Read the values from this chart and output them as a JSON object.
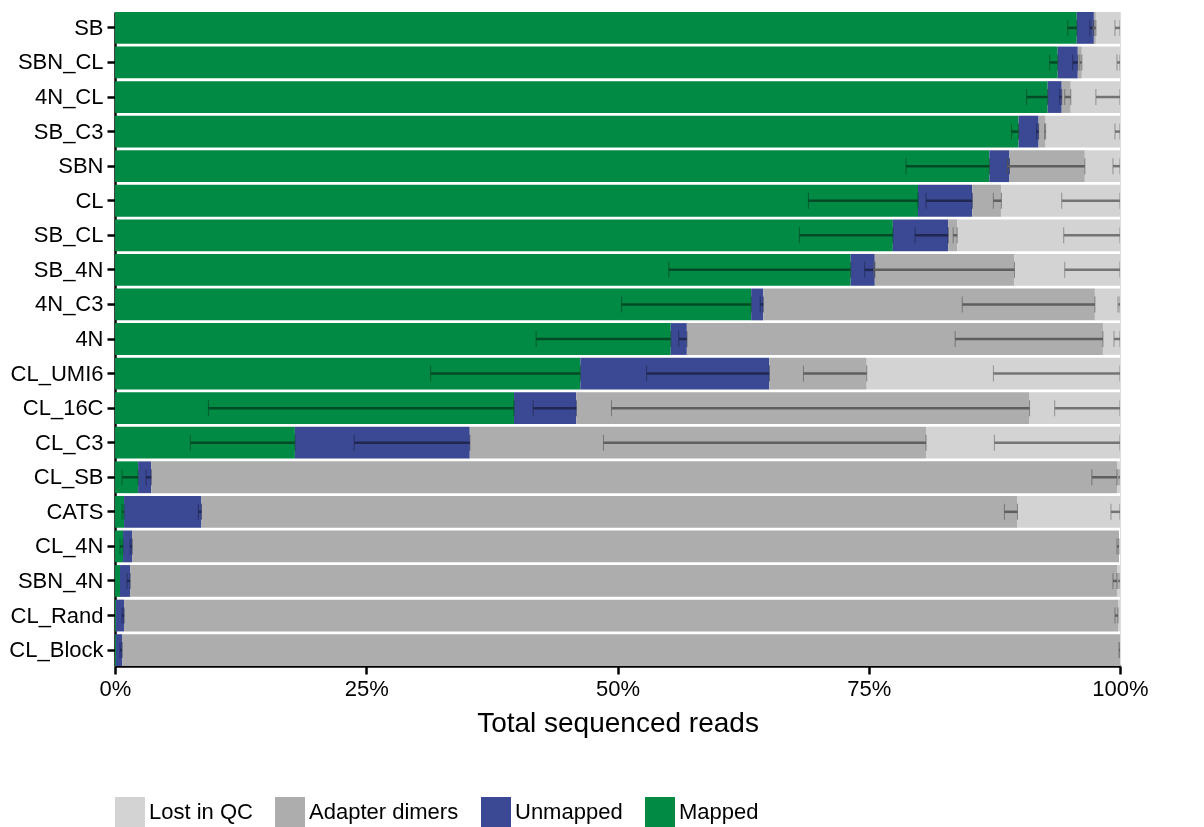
{
  "chart_data": {
    "type": "bar",
    "orientation": "horizontal",
    "stacked": true,
    "categories": [
      "SB",
      "SBN_CL",
      "4N_CL",
      "SB_C3",
      "SBN",
      "CL",
      "SB_CL",
      "SB_4N",
      "4N_C3",
      "4N",
      "CL_UMI6",
      "CL_16C",
      "CL_C3",
      "CL_SB",
      "CATS",
      "CL_4N",
      "SBN_4N",
      "CL_Rand",
      "CL_Block"
    ],
    "xlabel": "Total sequenced reads",
    "xlim": [
      0,
      100
    ],
    "xticks": [
      {
        "value": 0,
        "label": "0%"
      },
      {
        "value": 25,
        "label": "25%"
      },
      {
        "value": 50,
        "label": "50%"
      },
      {
        "value": 75,
        "label": "75%"
      },
      {
        "value": 100,
        "label": "100%"
      }
    ],
    "grid": false,
    "legend": "bottom",
    "series": [
      {
        "name": "Mapped",
        "color": "#008a44",
        "values": [
          95.7,
          93.8,
          92.8,
          89.9,
          87.0,
          79.9,
          77.4,
          73.2,
          63.3,
          55.3,
          46.3,
          39.7,
          17.9,
          2.3,
          0.9,
          0.8,
          0.5,
          0.1,
          0.1
        ],
        "errors": [
          [
            94.8,
            95.7
          ],
          [
            93.0,
            93.8
          ],
          [
            90.7,
            92.8
          ],
          [
            89.2,
            89.9
          ],
          [
            78.7,
            87.0
          ],
          [
            69.0,
            79.9
          ],
          [
            68.1,
            77.4
          ],
          [
            55.1,
            73.2
          ],
          [
            50.4,
            63.3
          ],
          [
            41.9,
            55.3
          ],
          [
            31.4,
            46.3
          ],
          [
            9.3,
            39.7
          ],
          [
            7.5,
            17.9
          ],
          [
            0.7,
            2.3
          ],
          [
            0.7,
            0.9
          ],
          [
            0.5,
            0.8
          ],
          null,
          null,
          null
        ]
      },
      {
        "name": "Unmapped",
        "color": "#3b4994",
        "values": [
          1.7,
          2.0,
          1.4,
          2.0,
          2.0,
          5.4,
          5.5,
          2.4,
          1.2,
          1.6,
          18.8,
          6.2,
          17.4,
          1.3,
          7.7,
          0.9,
          1.0,
          0.8,
          0.6
        ],
        "errors": [
          [
            97.0,
            97.4
          ],
          [
            95.3,
            95.8
          ],
          [
            94.0,
            94.2
          ],
          [
            91.7,
            91.9
          ],
          [
            88.8,
            89.0
          ],
          [
            80.7,
            85.3
          ],
          [
            79.6,
            82.9
          ],
          [
            74.6,
            75.6
          ],
          [
            64.2,
            64.5
          ],
          [
            56.1,
            56.9
          ],
          [
            52.9,
            65.1
          ],
          [
            41.6,
            45.9
          ],
          [
            23.8,
            35.3
          ],
          [
            3.1,
            3.6
          ],
          [
            8.3,
            8.6
          ],
          [
            1.5,
            1.7
          ],
          [
            1.2,
            1.5
          ],
          [
            0.7,
            0.9
          ],
          [
            0.5,
            0.7
          ]
        ]
      },
      {
        "name": "Adapter dimers",
        "color": "#adadad",
        "values": [
          0.2,
          0.4,
          0.9,
          0.7,
          7.5,
          2.9,
          0.9,
          13.9,
          33.0,
          41.4,
          9.7,
          45.1,
          45.4,
          96.1,
          81.2,
          98.2,
          98.2,
          98.9,
          99.3
        ],
        "errors": [
          [
            97.3,
            97.6
          ],
          [
            96.0,
            96.2
          ],
          [
            94.5,
            95.1
          ],
          [
            92.5,
            92.6
          ],
          [
            88.8,
            96.5
          ],
          [
            87.4,
            88.2
          ],
          [
            83.4,
            83.8
          ],
          [
            75.5,
            89.5
          ],
          [
            84.3,
            97.5
          ],
          [
            83.6,
            98.3
          ],
          [
            68.5,
            74.8
          ],
          [
            49.4,
            91.0
          ],
          [
            48.6,
            80.7
          ],
          [
            97.2,
            99.7
          ],
          [
            88.5,
            89.8
          ],
          [
            99.7,
            99.9
          ],
          [
            99.3,
            99.7
          ],
          [
            99.5,
            99.8
          ],
          [
            99.9,
            100
          ]
        ]
      },
      {
        "name": "Lost in QC",
        "color": "#d3d3d3",
        "values": [
          2.4,
          3.8,
          4.9,
          7.4,
          3.5,
          11.8,
          16.2,
          10.5,
          2.5,
          1.7,
          25.2,
          9.0,
          19.3,
          0.3,
          10.2,
          null,
          0.3,
          0.2,
          null
        ],
        "errors": [
          [
            99.5,
            100
          ],
          [
            99.7,
            100
          ],
          [
            97.6,
            100
          ],
          [
            99.5,
            100
          ],
          [
            99.3,
            100
          ],
          [
            94.2,
            100
          ],
          [
            94.4,
            100
          ],
          [
            94.5,
            100
          ],
          [
            99.8,
            100
          ],
          [
            99.4,
            100
          ],
          [
            87.4,
            100
          ],
          [
            93.5,
            100
          ],
          [
            87.5,
            100
          ],
          [
            99.8,
            100
          ],
          [
            99.1,
            100
          ],
          null,
          [
            99.8,
            100
          ],
          null,
          null
        ]
      }
    ]
  }
}
